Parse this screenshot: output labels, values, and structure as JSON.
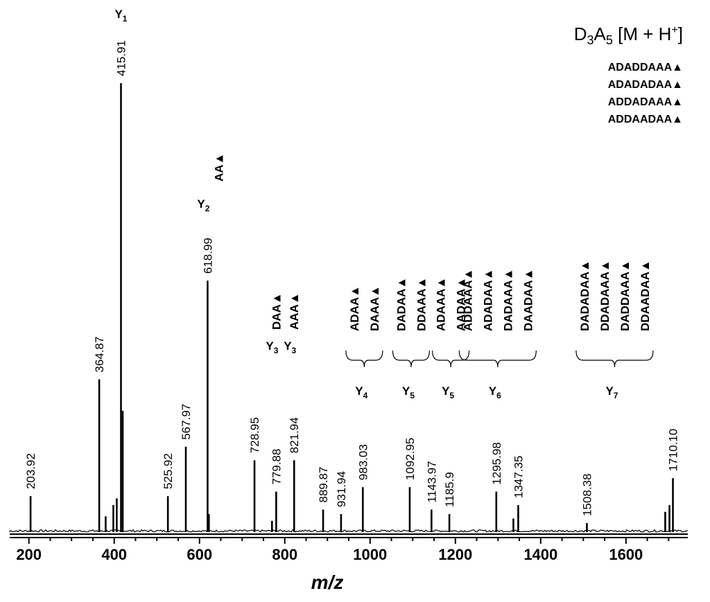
{
  "chart_data": {
    "type": "spectrum",
    "title_parts": [
      "D",
      "3",
      "A",
      "5",
      " [M + H",
      "+",
      "]"
    ],
    "legend_sequences": [
      "ADADDAAA▲",
      "ADADADAA▲",
      "ADDADAAA▲",
      "ADDAADAA▲"
    ],
    "xlabel": "m/z",
    "xlim": [
      155,
      1745
    ],
    "xticks": [
      200,
      400,
      600,
      800,
      1000,
      1200,
      1400,
      1600
    ],
    "ylim": [
      0,
      100
    ],
    "peaks": [
      {
        "mz": 203.92,
        "label": "203.92",
        "intensity": 8
      },
      {
        "mz": 364.87,
        "label": "364.87",
        "intensity": 34
      },
      {
        "mz": 415.91,
        "label": "415.91",
        "intensity": 100
      },
      {
        "mz": 525.92,
        "label": "525.92",
        "intensity": 8
      },
      {
        "mz": 567.97,
        "label": "567.97",
        "intensity": 19
      },
      {
        "mz": 618.99,
        "label": "618.99",
        "intensity": 56
      },
      {
        "mz": 728.95,
        "label": "728.95",
        "intensity": 16
      },
      {
        "mz": 779.88,
        "label": "779.88",
        "intensity": 9
      },
      {
        "mz": 821.94,
        "label": "821.94",
        "intensity": 16
      },
      {
        "mz": 889.87,
        "label": "889.87",
        "intensity": 5
      },
      {
        "mz": 931.94,
        "label": "931.94",
        "intensity": 4
      },
      {
        "mz": 983.03,
        "label": "983.03",
        "intensity": 10
      },
      {
        "mz": 1092.95,
        "label": "1092.95",
        "intensity": 10
      },
      {
        "mz": 1143.97,
        "label": "1143.97",
        "intensity": 5
      },
      {
        "mz": 1185.9,
        "label": "1185.9",
        "intensity": 4
      },
      {
        "mz": 1295.98,
        "label": "1295.98",
        "intensity": 9
      },
      {
        "mz": 1347.35,
        "label": "1347.35",
        "intensity": 6
      },
      {
        "mz": 1508.38,
        "label": "1508.38",
        "intensity": 2
      },
      {
        "mz": 1710.1,
        "label": "1710.10",
        "intensity": 12
      }
    ],
    "minor_peaks": [
      {
        "mz": 380,
        "intensity": 3.5
      },
      {
        "mz": 398,
        "intensity": 6
      },
      {
        "mz": 406,
        "intensity": 7.5
      },
      {
        "mz": 420,
        "intensity": 27
      },
      {
        "mz": 622,
        "intensity": 4
      },
      {
        "mz": 770,
        "intensity": 2.5
      },
      {
        "mz": 1336,
        "intensity": 3
      },
      {
        "mz": 1692,
        "intensity": 4.5
      },
      {
        "mz": 1702,
        "intensity": 6
      }
    ],
    "annotations": [
      {
        "mz": 415.91,
        "ion": "Y",
        "sub": "1",
        "sequences": []
      },
      {
        "mz": 618.99,
        "ion": "Y",
        "sub": "2",
        "sequences": [
          "AA▲"
        ]
      },
      {
        "mz": 779.88,
        "ion": "Y",
        "sub": "3",
        "sequences": [
          "DAA▲"
        ]
      },
      {
        "mz": 821.94,
        "ion": "Y",
        "sub": "3",
        "sequences": [
          "AAA▲"
        ]
      },
      {
        "mz": 983.03,
        "ion": "Y",
        "sub": "4",
        "sequences": [
          "ADAA▲",
          "DAAA▲"
        ]
      },
      {
        "mz": 1092.95,
        "ion": "Y",
        "sub": "5",
        "sequences": [
          "DADAA▲",
          "DDAAA▲"
        ]
      },
      {
        "mz": 1185.9,
        "ion": "Y",
        "sub": "5",
        "sequences": [
          "ADAAA▲",
          "AADAA▲"
        ]
      },
      {
        "mz": 1295.98,
        "ion": "Y",
        "sub": "6",
        "sequences": [
          "ADDAAA▲",
          "ADADAA▲",
          "DADAAA▲",
          "DAADAA▲"
        ]
      },
      {
        "mz": 1508.38,
        "ion": "Y",
        "sub": "7",
        "sequences": [
          "DADADAA▲",
          "DDADAAA▲",
          "DADDAAA▲",
          "DDAADAA▲"
        ]
      }
    ]
  }
}
